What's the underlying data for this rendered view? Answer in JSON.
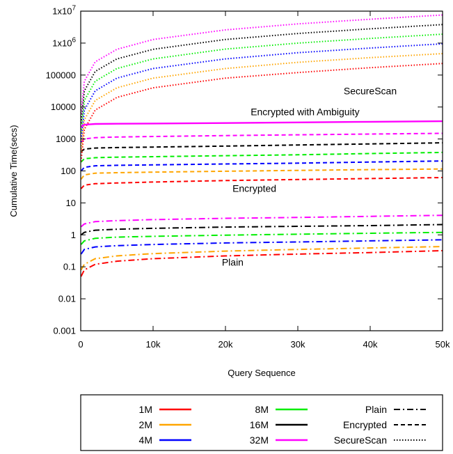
{
  "chart_data": {
    "type": "line",
    "xlabel": "Query Sequence",
    "ylabel": "Cumulative Time(secs)",
    "xlim": [
      0,
      50000
    ],
    "ylim": [
      0.001,
      10000000
    ],
    "yscale": "log",
    "grid": false,
    "legend_placement": "bottom",
    "x_ticks": [
      {
        "value": 0,
        "label": "0"
      },
      {
        "value": 10000,
        "label": "10k"
      },
      {
        "value": 20000,
        "label": "20k"
      },
      {
        "value": 30000,
        "label": "30k"
      },
      {
        "value": 40000,
        "label": "40k"
      },
      {
        "value": 50000,
        "label": "50k"
      }
    ],
    "y_ticks": [
      {
        "value": 0.001,
        "label": "0.001"
      },
      {
        "value": 0.01,
        "label": "0.01"
      },
      {
        "value": 0.1,
        "label": "0.1"
      },
      {
        "value": 1,
        "label": "1"
      },
      {
        "value": 10,
        "label": "10"
      },
      {
        "value": 100,
        "label": "100"
      },
      {
        "value": 1000,
        "label": "1000"
      },
      {
        "value": 10000,
        "label": "10000"
      },
      {
        "value": 100000,
        "label": "100000"
      },
      {
        "value": 1000000,
        "label": "1x10^6"
      },
      {
        "value": 10000000,
        "label": "1x10^7"
      }
    ],
    "sizes": [
      {
        "name": "1M",
        "color": "#ff0000"
      },
      {
        "name": "2M",
        "color": "#ffa500"
      },
      {
        "name": "4M",
        "color": "#0000ff"
      },
      {
        "name": "8M",
        "color": "#00ee00"
      },
      {
        "name": "16M",
        "color": "#000000"
      },
      {
        "name": "32M",
        "color": "#ff00ff"
      }
    ],
    "methods": [
      {
        "name": "Plain",
        "style": "dashdot"
      },
      {
        "name": "Encrypted",
        "style": "dashed"
      },
      {
        "name": "SecureScan",
        "style": "dotted"
      }
    ],
    "x": [
      50,
      500,
      2000,
      5000,
      10000,
      20000,
      30000,
      40000,
      50000
    ],
    "series": [
      {
        "size": "1M",
        "method": "Plain",
        "values": [
          0.05,
          0.08,
          0.12,
          0.15,
          0.18,
          0.22,
          0.25,
          0.28,
          0.32
        ]
      },
      {
        "size": "2M",
        "method": "Plain",
        "values": [
          0.08,
          0.12,
          0.18,
          0.22,
          0.26,
          0.31,
          0.35,
          0.39,
          0.43
        ]
      },
      {
        "size": "4M",
        "method": "Plain",
        "values": [
          0.25,
          0.35,
          0.42,
          0.46,
          0.5,
          0.56,
          0.6,
          0.65,
          0.7
        ]
      },
      {
        "size": "8M",
        "method": "Plain",
        "values": [
          0.5,
          0.65,
          0.78,
          0.85,
          0.9,
          0.98,
          1.05,
          1.12,
          1.2
        ]
      },
      {
        "size": "16M",
        "method": "Plain",
        "values": [
          1.0,
          1.2,
          1.4,
          1.5,
          1.6,
          1.75,
          1.85,
          1.95,
          2.1
        ]
      },
      {
        "size": "32M",
        "method": "Plain",
        "values": [
          1.8,
          2.2,
          2.6,
          2.8,
          3.0,
          3.3,
          3.5,
          3.8,
          4.1
        ]
      },
      {
        "size": "1M",
        "method": "Encrypted",
        "values": [
          28,
          36,
          40,
          42,
          45,
          50,
          54,
          58,
          62
        ]
      },
      {
        "size": "2M",
        "method": "Encrypted",
        "values": [
          55,
          75,
          85,
          88,
          92,
          98,
          104,
          110,
          115
        ]
      },
      {
        "size": "4M",
        "method": "Encrypted",
        "values": [
          100,
          130,
          145,
          150,
          155,
          165,
          175,
          190,
          205
        ]
      },
      {
        "size": "8M",
        "method": "Encrypted",
        "values": [
          190,
          240,
          260,
          270,
          280,
          300,
          320,
          350,
          380
        ]
      },
      {
        "size": "16M",
        "method": "Encrypted",
        "values": [
          400,
          480,
          520,
          540,
          560,
          600,
          650,
          700,
          760
        ]
      },
      {
        "size": "32M",
        "method": "Encrypted",
        "values": [
          800,
          1000,
          1100,
          1150,
          1200,
          1280,
          1350,
          1430,
          1500
        ]
      },
      {
        "size": "1M",
        "method": "SecureScan",
        "values": [
          200,
          2000,
          8000,
          20000,
          40000,
          80000,
          120000,
          170000,
          230000
        ]
      },
      {
        "size": "2M",
        "method": "SecureScan",
        "values": [
          400,
          4000,
          16000,
          40000,
          80000,
          160000,
          250000,
          350000,
          470000
        ]
      },
      {
        "size": "4M",
        "method": "SecureScan",
        "values": [
          800,
          8000,
          32000,
          80000,
          160000,
          320000,
          500000,
          700000,
          950000
        ]
      },
      {
        "size": "8M",
        "method": "SecureScan",
        "values": [
          1600,
          16000,
          64000,
          160000,
          320000,
          650000,
          1000000,
          1400000,
          1900000
        ]
      },
      {
        "size": "16M",
        "method": "SecureScan",
        "values": [
          3200,
          32000,
          130000,
          320000,
          640000,
          1300000,
          2000000,
          2800000,
          3800000
        ]
      },
      {
        "size": "32M",
        "method": "SecureScan",
        "values": [
          6400,
          64000,
          260000,
          640000,
          1300000,
          2600000,
          4000000,
          5600000,
          7600000
        ]
      },
      {
        "size": "32M",
        "method": "Encrypted with Ambiguity",
        "values": [
          2400,
          2800,
          2950,
          3000,
          3050,
          3150,
          3300,
          3450,
          3600
        ]
      }
    ],
    "annotations": [
      {
        "text": "SecureScan",
        "x": 40000,
        "y": 25000
      },
      {
        "text": "Encrypted with Ambiguity",
        "x": 31000,
        "y": 5500
      },
      {
        "text": "Encrypted",
        "x": 24000,
        "y": 22
      },
      {
        "text": "Plain",
        "x": 21000,
        "y": 0.11
      }
    ]
  }
}
